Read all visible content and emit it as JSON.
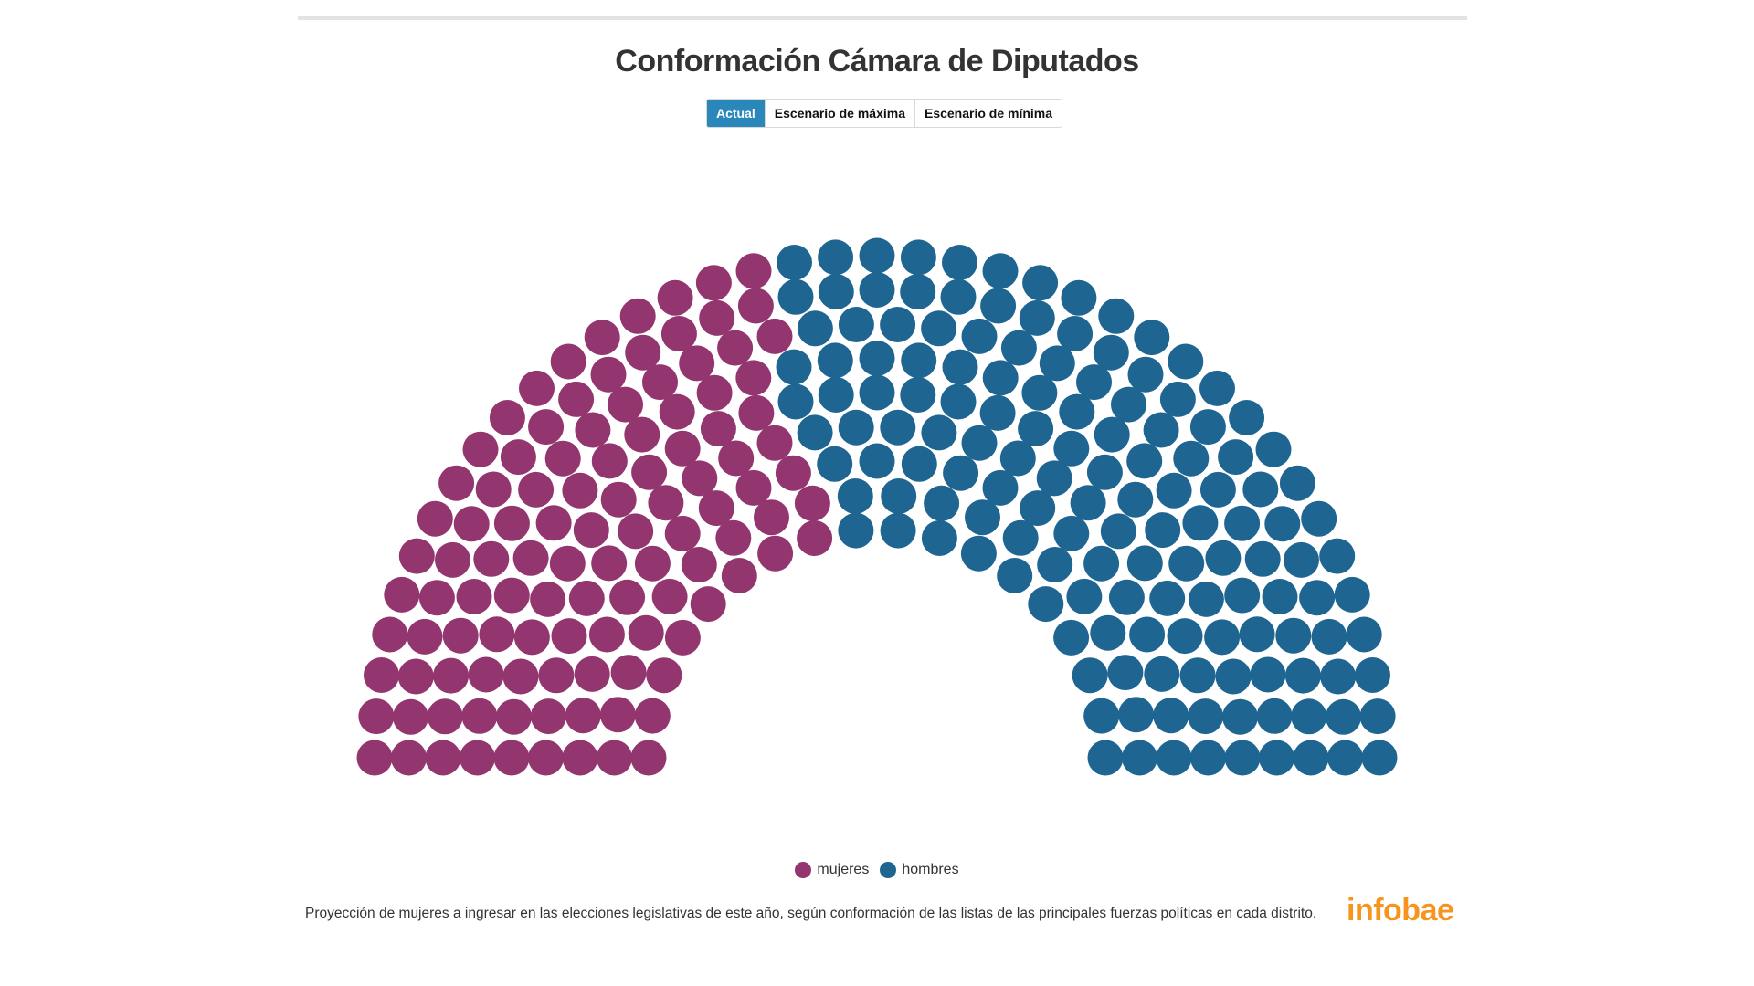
{
  "title": "Conformación Cámara de Diputados",
  "tabs": [
    {
      "label": "Actual",
      "active": true
    },
    {
      "label": "Escenario de máxima",
      "active": false
    },
    {
      "label": "Escenario de mínima",
      "active": false
    }
  ],
  "colors": {
    "mujeres": "#93356e",
    "hombres": "#1f6591",
    "tab_active": "#2a87ba",
    "logo": "#f7941d"
  },
  "chart_data": {
    "type": "parliament",
    "total_seats": 257,
    "series": [
      {
        "name": "mujeres",
        "value": 111
      },
      {
        "name": "hombres",
        "value": 146
      }
    ],
    "rows": 9,
    "legend": "bottom-center"
  },
  "legend": [
    {
      "label": "mujeres"
    },
    {
      "label": "hombres"
    }
  ],
  "note": "Proyección de mujeres a ingresar en las elecciones legislativas de este año, según conformación de las listas de las principales fuerzas políticas en cada distrito.",
  "logo": "infobae"
}
